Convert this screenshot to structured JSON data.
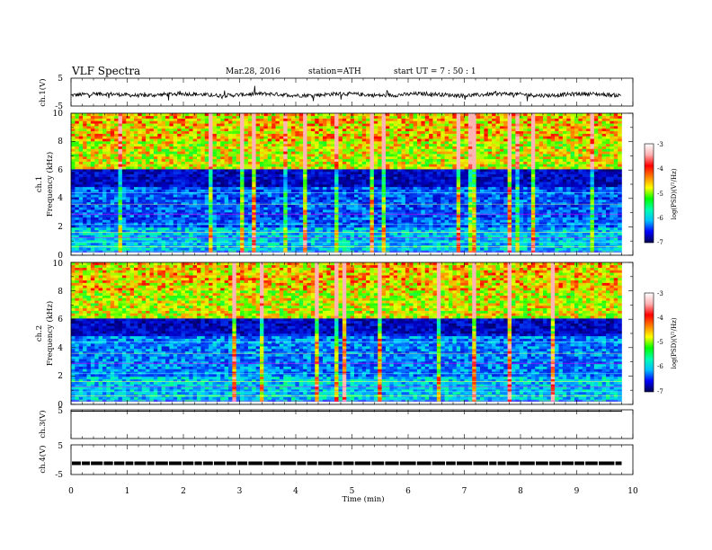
{
  "header": {
    "title": "VLF  Spectra",
    "date": "Mar.28, 2016",
    "station": "station=ATH",
    "start": "start  UT  =   7  : 50 : 1"
  },
  "chart_data": [
    {
      "type": "line",
      "panel": "ch1-waveform",
      "ylabel": "ch.1(V)",
      "ylim": [
        -5,
        5
      ],
      "yticks": [
        "5",
        "-5"
      ],
      "xlim": [
        0,
        10
      ],
      "x_extent_min": 9.8,
      "baseline_v": -0.9,
      "color": "#000000"
    },
    {
      "type": "heatmap",
      "panel": "ch1-spectrogram",
      "ylabel": "ch.1",
      "ylabel2": "Frequency  (kHz)",
      "ylim": [
        0,
        10
      ],
      "yticks": [
        "0",
        "2",
        "4",
        "6",
        "8",
        "10"
      ],
      "xlim": [
        0,
        10
      ],
      "x_extent_min": 9.8,
      "colorbar": {
        "label": "log(PSD)(V²/Hz)",
        "range": [
          -7,
          -3
        ],
        "ticks": [
          "-3",
          "-4",
          "-5",
          "-6",
          "-7"
        ],
        "colors": [
          "#000050",
          "#0000ff",
          "#00c0ff",
          "#00ffb0",
          "#00ff00",
          "#ffff00",
          "#ff8000",
          "#ff0000",
          "#ffb0b0",
          "#ffffff"
        ]
      }
    },
    {
      "type": "heatmap",
      "panel": "ch2-spectrogram",
      "ylabel": "ch.2",
      "ylabel2": "Frequency  (kHz)",
      "ylim": [
        0,
        10
      ],
      "yticks": [
        "0",
        "2",
        "4",
        "6",
        "8",
        "10"
      ],
      "xlim": [
        0,
        10
      ],
      "x_extent_min": 9.8,
      "colorbar": {
        "label": "log(PSD)(V²/Hz)",
        "range": [
          -7,
          -3
        ],
        "ticks": [
          "-3",
          "-4",
          "-5",
          "-6",
          "-7"
        ],
        "colors": [
          "#000050",
          "#0000ff",
          "#00c0ff",
          "#00ffb0",
          "#00ff00",
          "#ffff00",
          "#ff8000",
          "#ff0000",
          "#ffb0b0",
          "#ffffff"
        ]
      }
    },
    {
      "type": "line",
      "panel": "ch3-waveform",
      "ylabel": "ch.3(V)",
      "ylim": [
        -5,
        5
      ],
      "yticks": [
        "5"
      ],
      "xlim": [
        0,
        10
      ],
      "x_extent_min": 9.8,
      "baseline_v": 5,
      "color": "#000000"
    },
    {
      "type": "line",
      "panel": "ch4-waveform",
      "ylabel": "ch.4(V)",
      "ylim": [
        -5,
        5
      ],
      "yticks": [
        "5",
        "-5"
      ],
      "xlim": [
        0,
        10
      ],
      "x_extent_min": 9.8,
      "baseline_v": 0,
      "color": "#000000",
      "xlabel": "Time  (min)",
      "xticks": [
        "0",
        "1",
        "2",
        "3",
        "4",
        "5",
        "6",
        "7",
        "8",
        "9",
        "10"
      ]
    }
  ]
}
